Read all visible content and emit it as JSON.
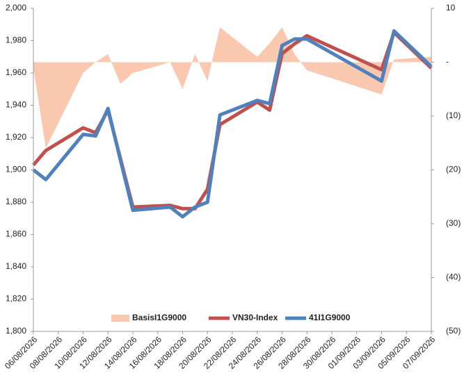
{
  "chart_data": {
    "type": "combo",
    "x": [
      "06/08/2026",
      "07/08/2026",
      "10/08/2026",
      "11/08/2026",
      "12/08/2026",
      "13/08/2026",
      "14/08/2026",
      "17/08/2026",
      "18/08/2026",
      "19/08/2026",
      "20/08/2026",
      "21/08/2026",
      "24/08/2026",
      "25/08/2026",
      "26/08/2026",
      "27/08/2026",
      "28/08/2026",
      "03/09/2026",
      "04/09/2026",
      "07/09/2026"
    ],
    "series": [
      {
        "name": "BasisI1G9000",
        "kind": "area",
        "axis": "y2",
        "color": "#f9c8ae",
        "values": [
          -1,
          -16,
          -2,
          0,
          1.5,
          -4,
          -2,
          0,
          -5,
          1.5,
          -3.5,
          6.5,
          1,
          3.5,
          6.5,
          1.5,
          -1.5,
          -6,
          0.5,
          1
        ]
      },
      {
        "name": "VN30-Index",
        "kind": "line",
        "color": "#c0504d",
        "values": [
          1903,
          1912,
          1926,
          1923,
          1937,
          1907,
          1877,
          1878,
          1876,
          1876,
          1888,
          1928,
          1942,
          1937,
          1972,
          1978,
          1983,
          1962,
          1985,
          1963
        ]
      },
      {
        "name": "41I1G9000",
        "kind": "line",
        "color": "#4f81bd",
        "values": [
          1900,
          1894,
          1922,
          1921,
          1938,
          1906,
          1875,
          1877,
          1871,
          1877,
          1880,
          1934,
          1943,
          1941,
          1977,
          1981,
          1981,
          1955,
          1986,
          1964
        ]
      }
    ],
    "xlim": [
      "06/08/2026",
      "07/09/2026"
    ],
    "xticks": [
      "06/08/2026",
      "08/08/2026",
      "10/08/2026",
      "12/08/2026",
      "14/08/2026",
      "16/08/2026",
      "18/08/2026",
      "20/08/2026",
      "22/08/2026",
      "24/08/2026",
      "26/08/2026",
      "28/08/2026",
      "30/08/2026",
      "01/09/2026",
      "03/09/2026",
      "05/09/2026",
      "07/09/2026"
    ],
    "ylim": [
      1800,
      2000
    ],
    "yticks": [
      {
        "value": 1800,
        "label": "1,800"
      },
      {
        "value": 1820,
        "label": "1,820"
      },
      {
        "value": 1840,
        "label": "1,840"
      },
      {
        "value": 1860,
        "label": "1,860"
      },
      {
        "value": 1880,
        "label": "1,880"
      },
      {
        "value": 1900,
        "label": "1,900"
      },
      {
        "value": 1920,
        "label": "1,920"
      },
      {
        "value": 1940,
        "label": "1,940"
      },
      {
        "value": 1960,
        "label": "1,960"
      },
      {
        "value": 1980,
        "label": "1,980"
      },
      {
        "value": 2000,
        "label": "2,000"
      }
    ],
    "y2lim": [
      -50,
      10
    ],
    "y2ticks": [
      {
        "value": -50,
        "label": "(50)"
      },
      {
        "value": -40,
        "label": "(40)"
      },
      {
        "value": -30,
        "label": "(30)"
      },
      {
        "value": -20,
        "label": "(20)"
      },
      {
        "value": -10,
        "label": "(10)"
      },
      {
        "value": 0,
        "label": "-"
      },
      10
    ],
    "legend": "bottom"
  }
}
